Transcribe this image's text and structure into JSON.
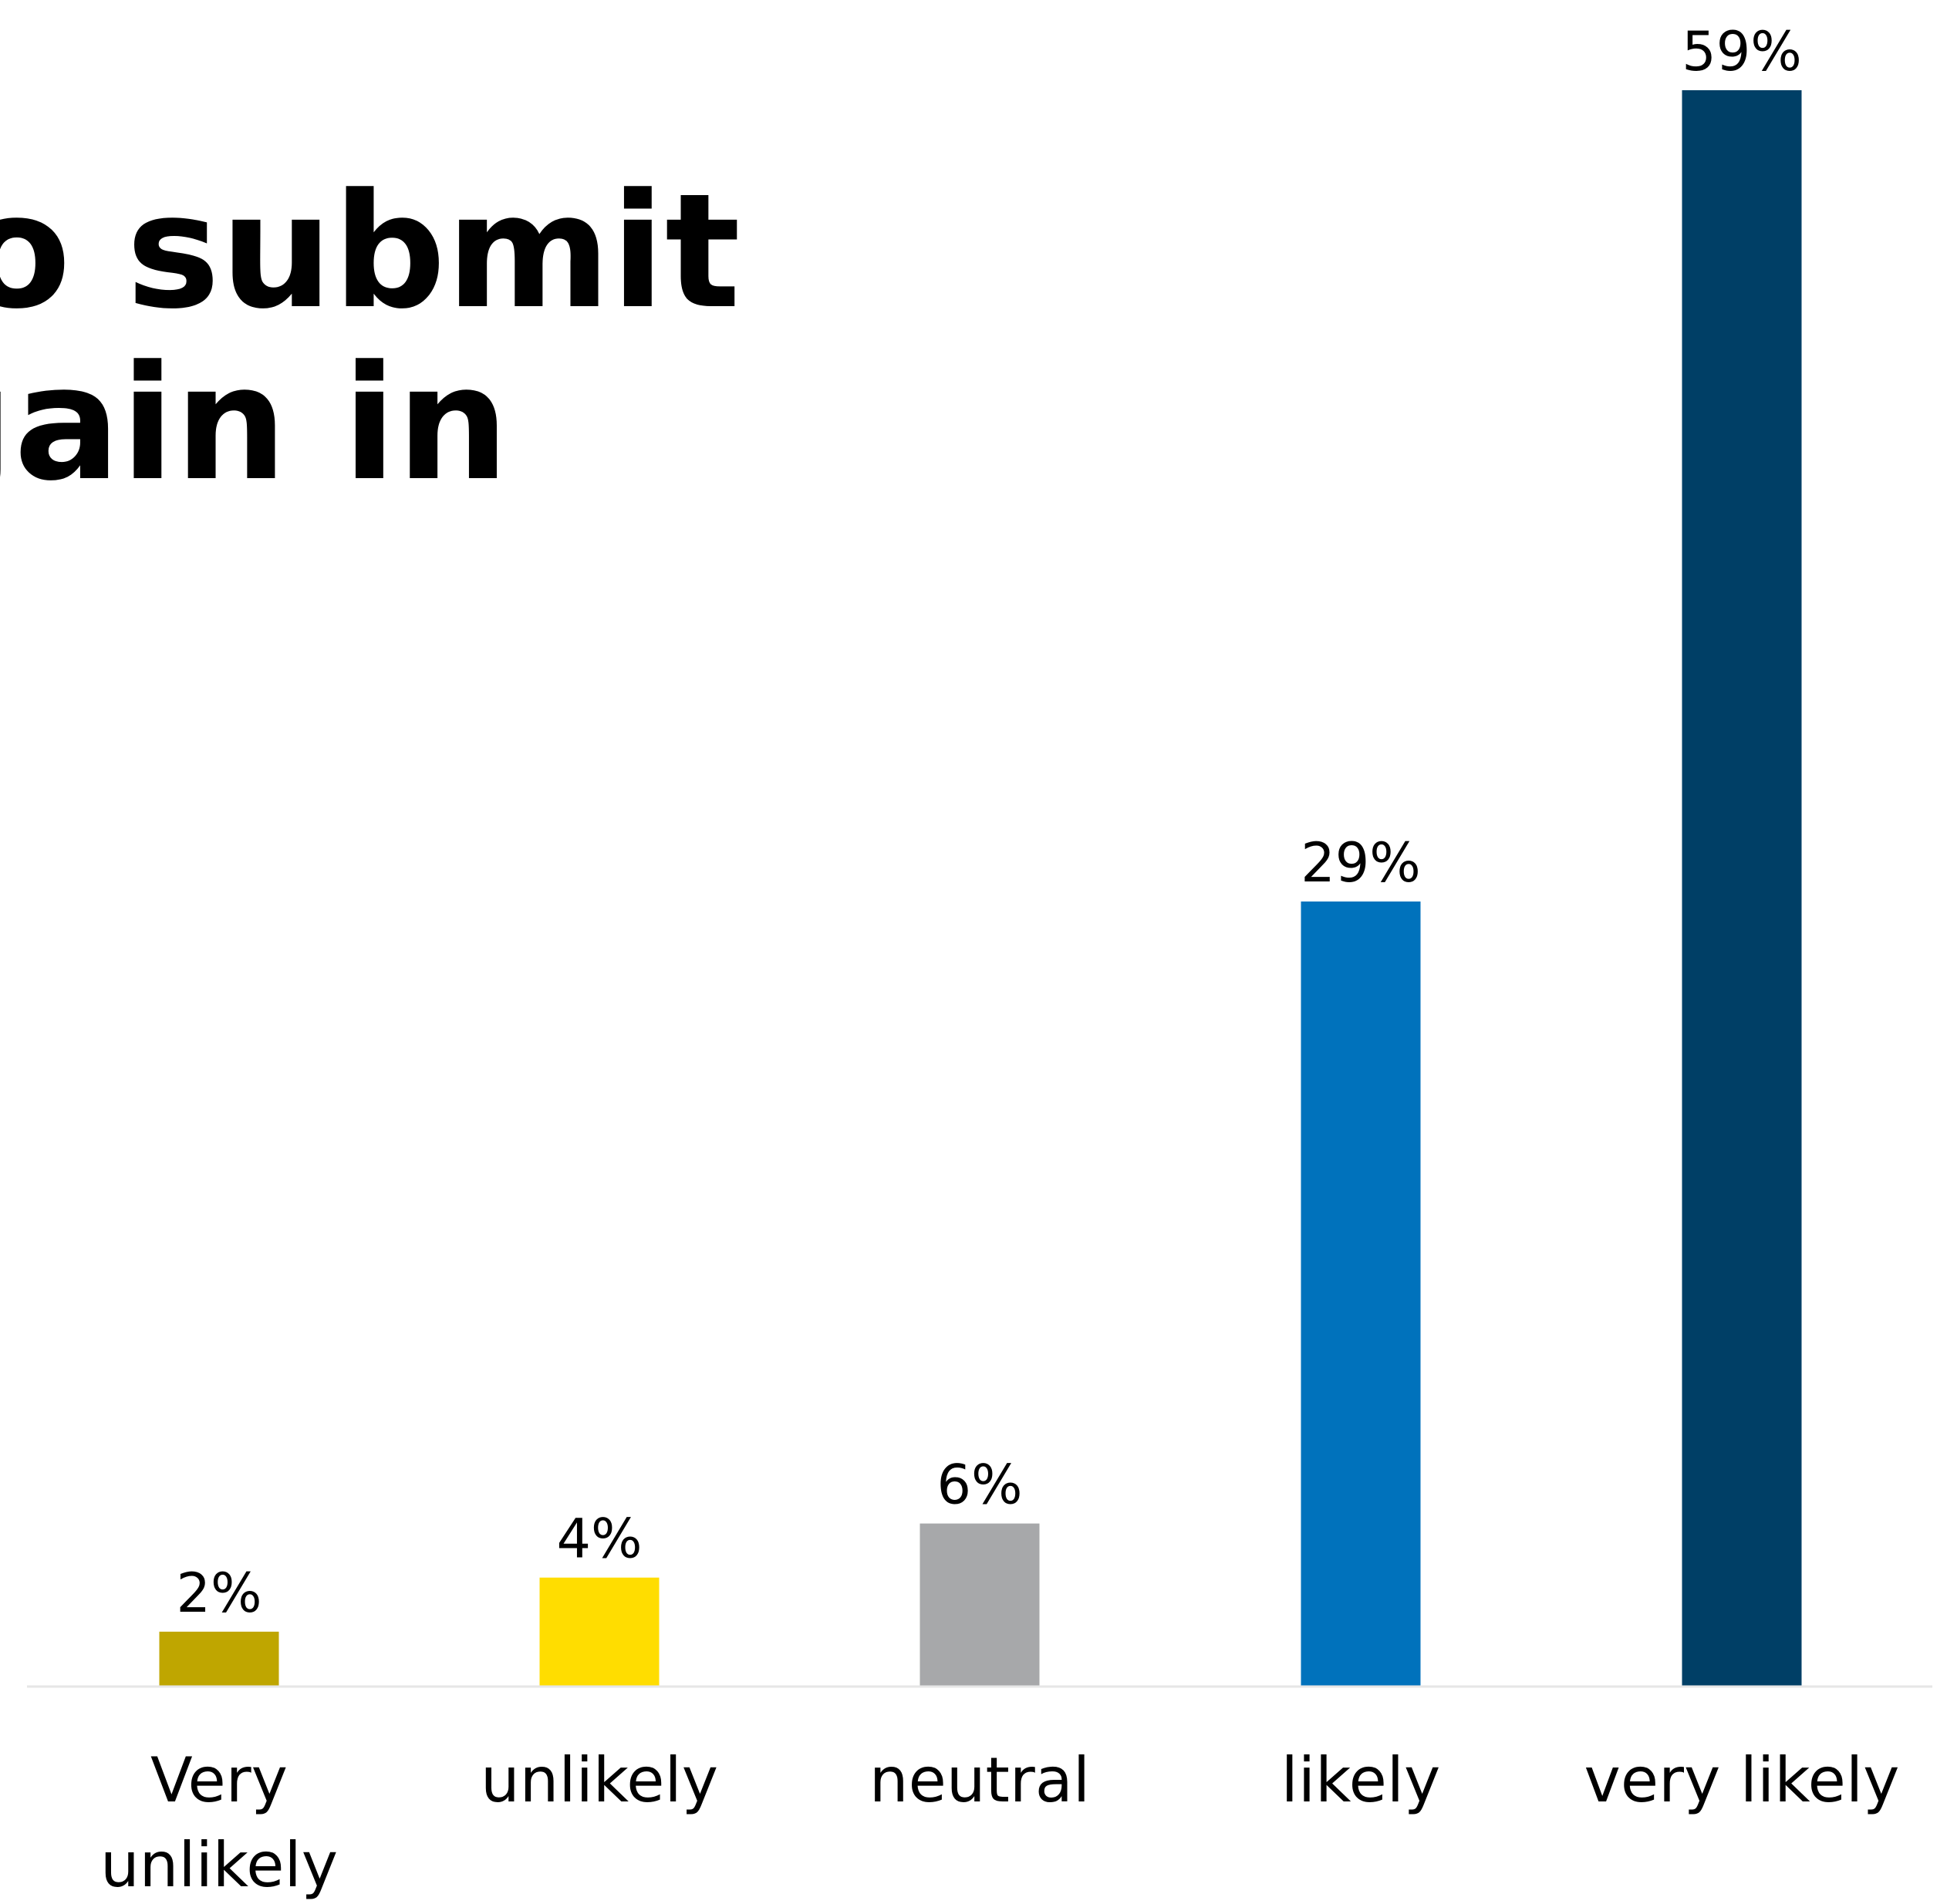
{
  "chart_data": {
    "type": "bar",
    "title_lines": [
      "o submit",
      "gain in"
    ],
    "categories": [
      [
        "Very",
        "unlikely"
      ],
      [
        "unlikely"
      ],
      [
        "neutral"
      ],
      [
        "likely"
      ],
      [
        "very likely"
      ]
    ],
    "values": [
      2,
      4,
      6,
      29,
      59
    ],
    "value_labels": [
      "2%",
      "4%",
      "6%",
      "29%",
      "59%"
    ],
    "colors": [
      "#BFA600",
      "#FFDD00",
      "#A7A8AA",
      "#0072BC",
      "#003F66"
    ],
    "ylim": [
      0,
      59
    ],
    "baseline_color": "#E6E6E6",
    "grid": false,
    "legend": false
  }
}
